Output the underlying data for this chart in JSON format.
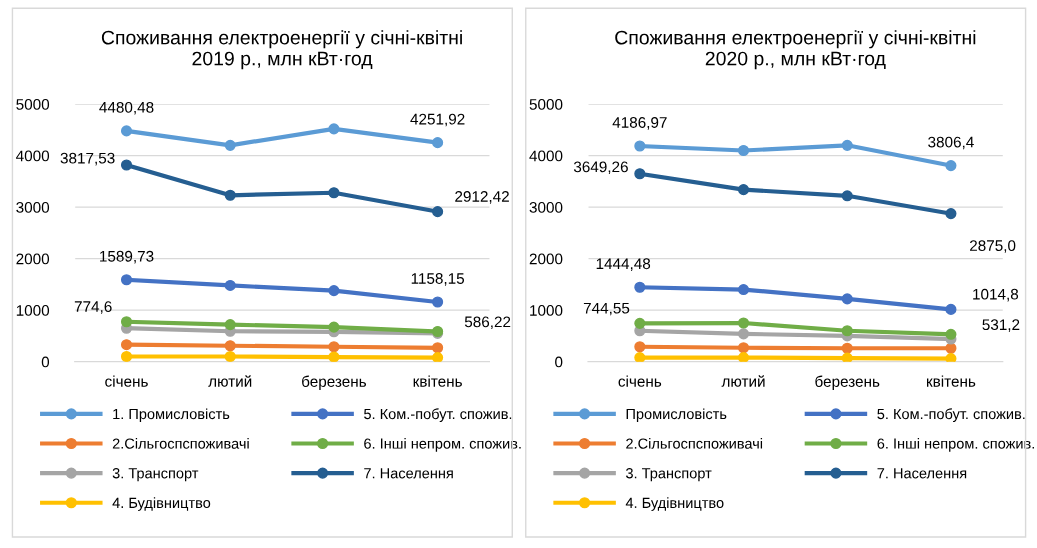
{
  "chart_data": [
    {
      "type": "line",
      "title": "Споживання електроенергії у січні-квітні\n2019 р., млн кВт·год",
      "categories": [
        "січень",
        "лютий",
        "березень",
        "квітень"
      ],
      "ylim": [
        0,
        5000
      ],
      "yticks": [
        0,
        1000,
        2000,
        3000,
        4000,
        5000
      ],
      "grid": "y",
      "legend": "bottom",
      "marker": "circle",
      "line_style": "solid",
      "series": [
        {
          "name": "1. Промисловість",
          "color": "#5b9bd5",
          "values": [
            4480.48,
            4200,
            4520,
            4251.92
          ],
          "value_labels": [
            "4480,48",
            null,
            null,
            "4251,92"
          ]
        },
        {
          "name": "2.Сільгоспспоживачі",
          "color": "#ed7d31",
          "values": [
            330,
            310,
            290,
            270
          ]
        },
        {
          "name": "3. Транспорт",
          "color": "#a5a5a5",
          "values": [
            650,
            590,
            580,
            550
          ]
        },
        {
          "name": "4. Будівництво",
          "color": "#ffc000",
          "values": [
            100,
            100,
            90,
            80
          ]
        },
        {
          "name": "5. Ком.-побут. спожив.",
          "color": "#4472c4",
          "values": [
            1589.73,
            1480,
            1380,
            1158.15
          ],
          "value_labels": [
            "1589,73",
            null,
            null,
            "1158,15"
          ]
        },
        {
          "name": "6. Інші непром. спожив.",
          "color": "#70ad47",
          "values": [
            774.6,
            720,
            670,
            586.22
          ],
          "value_labels": [
            "774,6",
            null,
            null,
            "586,22"
          ]
        },
        {
          "name": "7. Населення",
          "color": "#255e91",
          "values": [
            3817.53,
            3230,
            3280,
            2912.42
          ],
          "value_labels": [
            "3817,53",
            null,
            null,
            "2912,42"
          ]
        }
      ]
    },
    {
      "type": "line",
      "title": "Споживання електроенергії у січні-квітні\n2020 р., млн кВт·год",
      "categories": [
        "січень",
        "лютий",
        "березень",
        "квітень"
      ],
      "ylim": [
        0,
        5000
      ],
      "yticks": [
        0,
        1000,
        2000,
        3000,
        4000,
        5000
      ],
      "grid": "y",
      "legend": "bottom",
      "marker": "circle",
      "line_style": "solid",
      "series": [
        {
          "name": "Промисловість",
          "color": "#5b9bd5",
          "values": [
            4186.97,
            4100,
            4200,
            3806.4
          ],
          "value_labels": [
            "4186,97",
            null,
            null,
            "3806,4"
          ]
        },
        {
          "name": "2.Сільгоспспоживачі",
          "color": "#ed7d31",
          "values": [
            290,
            270,
            260,
            260
          ]
        },
        {
          "name": "3. Транспорт",
          "color": "#a5a5a5",
          "values": [
            600,
            540,
            500,
            440
          ]
        },
        {
          "name": "4. Будівництво",
          "color": "#ffc000",
          "values": [
            80,
            80,
            70,
            60
          ]
        },
        {
          "name": "5. Ком.-побут. спожив.",
          "color": "#4472c4",
          "values": [
            1444.48,
            1400,
            1220,
            1014.8
          ],
          "value_labels": [
            "1444,48",
            null,
            null,
            "1014,8"
          ]
        },
        {
          "name": "6. Інші непром. спожив.",
          "color": "#70ad47",
          "values": [
            744.55,
            750,
            600,
            531.2
          ],
          "value_labels": [
            "744,55",
            null,
            null,
            "531,2"
          ]
        },
        {
          "name": "7. Населення",
          "color": "#255e91",
          "values": [
            3649.26,
            3340,
            3220,
            2875.0
          ],
          "value_labels": [
            "3649,26",
            null,
            null,
            "2875,0"
          ]
        }
      ]
    }
  ]
}
